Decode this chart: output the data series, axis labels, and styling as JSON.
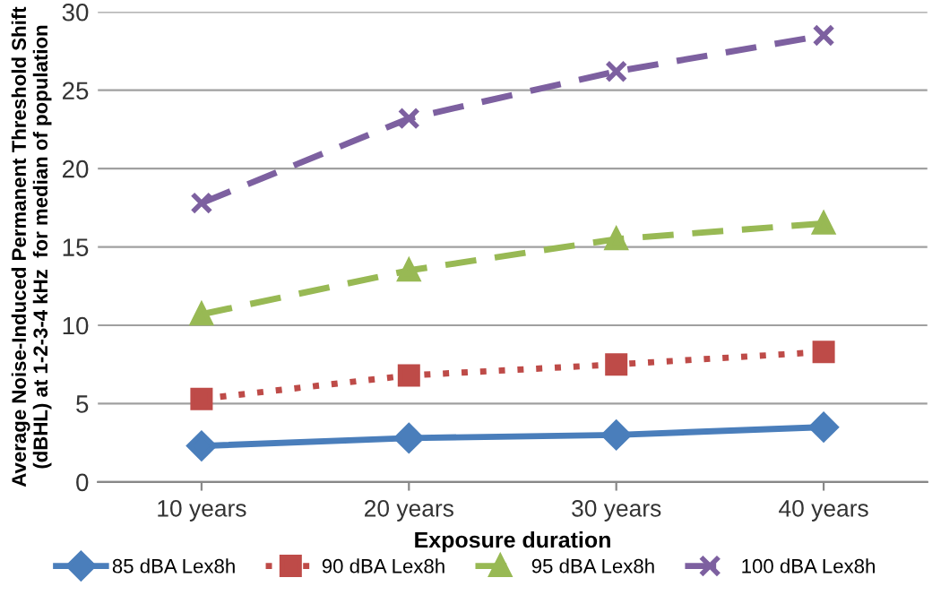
{
  "chart_data": {
    "type": "line",
    "xlabel": "Exposure duration",
    "ylabel": "Average Noise-Induced Permanent Threshold Shift\n(dBHL) at 1-2-3-4 kHz  for median of population",
    "categories": [
      "10 years",
      "20 years",
      "30 years",
      "40 years"
    ],
    "series": [
      {
        "name": "85 dBA Lex8h",
        "color": "#4a7ebb",
        "marker": "diamond",
        "line_style": "solid",
        "values": [
          2.3,
          2.8,
          3.0,
          3.5
        ]
      },
      {
        "name": "90 dBA Lex8h",
        "color": "#be4b48",
        "marker": "square",
        "line_style": "dotted",
        "values": [
          5.3,
          6.8,
          7.5,
          8.3
        ]
      },
      {
        "name": "95 dBA Lex8h",
        "color": "#98b954",
        "marker": "triangle",
        "line_style": "dashed",
        "values": [
          10.7,
          13.5,
          15.5,
          16.5
        ]
      },
      {
        "name": "100 dBA Lex8h",
        "color": "#7d60a0",
        "marker": "cross",
        "line_style": "dashed",
        "values": [
          17.8,
          23.2,
          26.2,
          28.5
        ]
      }
    ],
    "ylim": [
      0,
      30
    ],
    "yticks": [
      0,
      5,
      10,
      15,
      20,
      25,
      30
    ],
    "grid": "y",
    "legend": "bottom"
  }
}
